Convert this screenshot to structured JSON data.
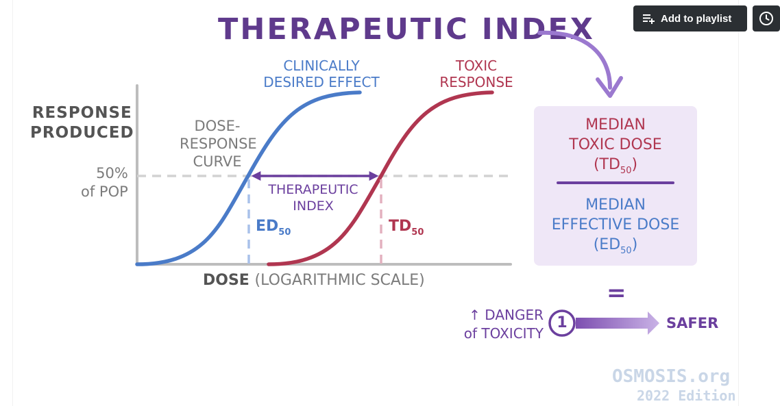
{
  "title": "THERAPEUTIC INDEX",
  "toolbar": {
    "playlist_label": "Add to playlist"
  },
  "graph": {
    "y_label_line1": "RESPONSE",
    "y_label_line2": "PRODUCED",
    "pop_label_line1": "50%",
    "pop_label_line2": "of POP",
    "dose_label": "DOSE",
    "dose_scale": "(LOGARITHMIC SCALE)",
    "curve_label_line1": "DOSE-",
    "curve_label_line2": "RESPONSE",
    "curve_label_line3": "CURVE",
    "effect_label_line1": "CLINICALLY",
    "effect_label_line2": "DESIRED EFFECT",
    "toxic_label_line1": "TOXIC",
    "toxic_label_line2": "RESPONSE",
    "index_label_line1": "THERAPEUTIC",
    "index_label_line2": "INDEX",
    "ed_label": "ED",
    "ed_sub": "50",
    "td_label": "TD",
    "td_sub": "50"
  },
  "ratio": {
    "numerator_line1": "MEDIAN",
    "numerator_line2": "TOXIC DOSE",
    "numerator_abbr": "TD",
    "numerator_sub": "50",
    "denominator_line1": "MEDIAN",
    "denominator_line2": "EFFECTIVE DOSE",
    "denominator_abbr": "ED",
    "denominator_sub": "50"
  },
  "scale": {
    "equals": "=",
    "danger_line1": "↑ DANGER",
    "danger_line2": "of TOXICITY",
    "one": "1",
    "safer": "SAFER"
  },
  "watermark": {
    "line1": "OSMOSIS.org",
    "line2": "2022 Edition"
  },
  "colors": {
    "blue": "#4a7bc8",
    "red": "#b03650",
    "purple": "#6b3f9e",
    "gray": "#7b7b7b",
    "panel": "#efe7f7"
  }
}
